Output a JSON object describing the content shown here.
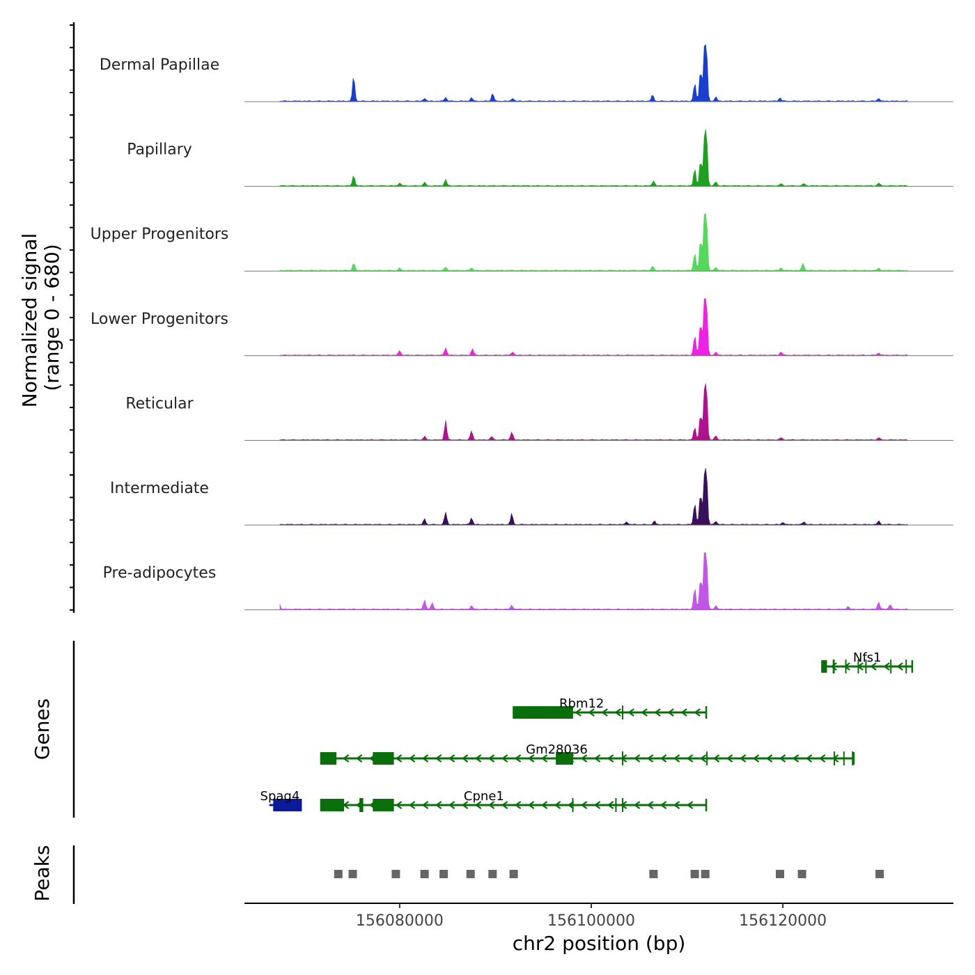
{
  "chart_data": {
    "type": "area",
    "title": "",
    "xlabel": "chr2 position (bp)",
    "ylabel_line1": "Normalized signal",
    "ylabel_line2": "(range 0 - 680)",
    "xlim": [
      156063800,
      156137800
    ],
    "ylim": [
      0,
      680
    ],
    "x_ticks": [
      156080000,
      156100000,
      156120000
    ],
    "x_tick_labels": [
      "156080000",
      "156100000",
      "156120000"
    ],
    "tracks": [
      {
        "name": "Dermal Papillae",
        "color": "#1a3fce",
        "peaks": [
          [
            156075200,
            0.44
          ],
          [
            156082600,
            0.05
          ],
          [
            156084800,
            0.07
          ],
          [
            156087500,
            0.06
          ],
          [
            156089700,
            0.14
          ],
          [
            156091800,
            0.05
          ],
          [
            156106400,
            0.11
          ],
          [
            156110800,
            0.32
          ],
          [
            156111400,
            0.55
          ],
          [
            156111800,
            0.74
          ],
          [
            156112000,
            1.0
          ],
          [
            156113000,
            0.07
          ],
          [
            156119700,
            0.06
          ],
          [
            156130000,
            0.05
          ]
        ]
      },
      {
        "name": "Papillary",
        "color": "#20a020",
        "peaks": [
          [
            156075200,
            0.19
          ],
          [
            156080000,
            0.05
          ],
          [
            156082600,
            0.06
          ],
          [
            156084800,
            0.11
          ],
          [
            156106500,
            0.09
          ],
          [
            156110800,
            0.3
          ],
          [
            156111400,
            0.45
          ],
          [
            156111800,
            0.63
          ],
          [
            156112000,
            1.0
          ],
          [
            156113000,
            0.07
          ],
          [
            156119800,
            0.04
          ],
          [
            156122200,
            0.04
          ],
          [
            156130000,
            0.05
          ]
        ]
      },
      {
        "name": "Upper Progenitors",
        "color": "#55d85c",
        "peaks": [
          [
            156075200,
            0.13
          ],
          [
            156080000,
            0.04
          ],
          [
            156084800,
            0.06
          ],
          [
            156087500,
            0.05
          ],
          [
            156106400,
            0.08
          ],
          [
            156110800,
            0.32
          ],
          [
            156111400,
            0.55
          ],
          [
            156111800,
            0.78
          ],
          [
            156112000,
            1.0
          ],
          [
            156113000,
            0.06
          ],
          [
            156119800,
            0.05
          ],
          [
            156122100,
            0.13
          ],
          [
            156130000,
            0.04
          ]
        ]
      },
      {
        "name": "Lower Progenitors",
        "color": "#ee22e0",
        "peaks": [
          [
            156080000,
            0.08
          ],
          [
            156084800,
            0.13
          ],
          [
            156087600,
            0.11
          ],
          [
            156091800,
            0.06
          ],
          [
            156110800,
            0.35
          ],
          [
            156111400,
            0.58
          ],
          [
            156111800,
            0.8
          ],
          [
            156112000,
            1.0
          ],
          [
            156113000,
            0.05
          ],
          [
            156119800,
            0.06
          ],
          [
            156130000,
            0.04
          ]
        ]
      },
      {
        "name": "Reticular",
        "color": "#b0128f",
        "peaks": [
          [
            156082600,
            0.06
          ],
          [
            156084800,
            0.34
          ],
          [
            156087500,
            0.16
          ],
          [
            156089600,
            0.06
          ],
          [
            156091700,
            0.14
          ],
          [
            156110800,
            0.22
          ],
          [
            156111400,
            0.45
          ],
          [
            156111800,
            0.65
          ],
          [
            156112000,
            1.0
          ],
          [
            156113000,
            0.07
          ],
          [
            156119800,
            0.04
          ],
          [
            156130000,
            0.04
          ]
        ]
      },
      {
        "name": "Intermediate",
        "color": "#3a0f5c",
        "peaks": [
          [
            156082600,
            0.1
          ],
          [
            156084800,
            0.22
          ],
          [
            156087500,
            0.12
          ],
          [
            156091700,
            0.19
          ],
          [
            156103700,
            0.05
          ],
          [
            156106600,
            0.06
          ],
          [
            156110800,
            0.38
          ],
          [
            156111400,
            0.55
          ],
          [
            156111800,
            0.65
          ],
          [
            156112000,
            1.0
          ],
          [
            156113000,
            0.06
          ],
          [
            156120000,
            0.04
          ],
          [
            156122200,
            0.05
          ],
          [
            156130000,
            0.06
          ]
        ]
      },
      {
        "name": "Pre-adipocytes",
        "color": "#c256e8",
        "peaks": [
          [
            156067400,
            0.12
          ],
          [
            156082600,
            0.17
          ],
          [
            156083400,
            0.11
          ],
          [
            156087500,
            0.06
          ],
          [
            156091700,
            0.07
          ],
          [
            156110800,
            0.38
          ],
          [
            156111400,
            0.55
          ],
          [
            156111800,
            0.78
          ],
          [
            156112000,
            1.0
          ],
          [
            156113000,
            0.06
          ],
          [
            156126800,
            0.05
          ],
          [
            156130000,
            0.13
          ],
          [
            156131200,
            0.09
          ]
        ]
      }
    ],
    "genes_panel_label": "Genes",
    "genes": [
      {
        "name": "Nfs1",
        "strand": "-",
        "color": "#0a6e0a",
        "start": 156124000,
        "end": 156133500,
        "label_pos": 156128800,
        "exons": [
          [
            156124000,
            156124600
          ],
          [
            156125200,
            156125400
          ],
          [
            156126500,
            156126600
          ],
          [
            156127800,
            156127900
          ],
          [
            156128600,
            156128700
          ],
          [
            156131200,
            156131300
          ],
          [
            156132800,
            156132900
          ]
        ]
      },
      {
        "name": "Rbm12",
        "strand": "-",
        "color": "#0a6e0a",
        "start": 156091800,
        "end": 156112000,
        "label_pos": 156099000,
        "exons": [
          [
            156091800,
            156098100
          ],
          [
            156103200,
            156103300
          ]
        ]
      },
      {
        "name": "Gm28036",
        "strand": "-",
        "color": "#0a6e0a",
        "start": 156071700,
        "end": 156127400,
        "label_pos": 156096400,
        "exons": [
          [
            156071700,
            156073400
          ],
          [
            156077200,
            156079400
          ],
          [
            156096300,
            156098100
          ],
          [
            156103200,
            156103300
          ],
          [
            156112000,
            156112100
          ],
          [
            156125300,
            156125400
          ],
          [
            156126300,
            156126400
          ],
          [
            156127200,
            156127300
          ]
        ]
      },
      {
        "name": "Cpne1",
        "strand": "-",
        "color": "#0a6e0a",
        "start": 156071700,
        "end": 156112000,
        "label_pos": 156088800,
        "exons": [
          [
            156071700,
            156074200
          ],
          [
            156075800,
            156076200
          ],
          [
            156077200,
            156079400
          ],
          [
            156098000,
            156098100
          ],
          [
            156102500,
            156102600
          ],
          [
            156103200,
            156103300
          ]
        ]
      },
      {
        "name": "Spag4",
        "strand": "+",
        "color": "#0a1a9a",
        "start": 156066400,
        "end": 156069700,
        "label_pos": 156067500,
        "exons": [
          [
            156066800,
            156069700
          ]
        ]
      }
    ],
    "peaks_panel_label": "Peaks",
    "peak_regions": [
      156073600,
      156075100,
      156079600,
      156082600,
      156084600,
      156087400,
      156089700,
      156091900,
      156106500,
      156110800,
      156111900,
      156119700,
      156122000,
      156130100
    ]
  }
}
